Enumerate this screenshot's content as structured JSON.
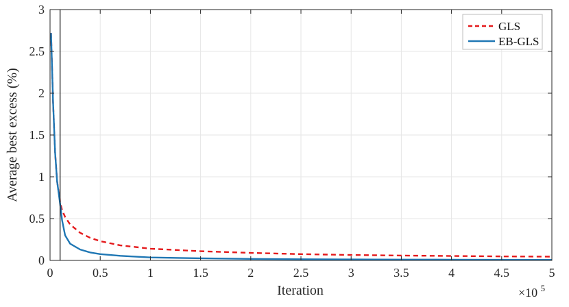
{
  "chart_data": {
    "type": "line",
    "xlabel": "Iteration",
    "ylabel": "Average best excess (%)",
    "x_exponent_label": "×10",
    "x_exponent_power": "5",
    "xlim": [
      0,
      5
    ],
    "ylim": [
      0,
      3
    ],
    "x_ticks": [
      0,
      0.5,
      1,
      1.5,
      2,
      2.5,
      3,
      3.5,
      4,
      4.5,
      5
    ],
    "x_tick_labels": [
      "0",
      "0.5",
      "1",
      "1.5",
      "2",
      "2.5",
      "3",
      "3.5",
      "4",
      "4.5",
      "5"
    ],
    "y_ticks": [
      0,
      0.5,
      1,
      1.5,
      2,
      2.5,
      3
    ],
    "y_tick_labels": [
      "0",
      "0.5",
      "1",
      "1.5",
      "2",
      "2.5",
      "3"
    ],
    "grid": true,
    "legend_position": "top-right",
    "vertical_line_x": 0.1,
    "series": [
      {
        "name": "GLS",
        "color": "#e41a1c",
        "dash": "dashed",
        "x": [
          0.01,
          0.03,
          0.05,
          0.07,
          0.1,
          0.12,
          0.15,
          0.2,
          0.3,
          0.4,
          0.5,
          0.7,
          1.0,
          1.5,
          2.0,
          2.5,
          3.0,
          3.5,
          4.0,
          4.5,
          5.0
        ],
        "y": [
          2.72,
          1.9,
          1.3,
          0.95,
          0.7,
          0.6,
          0.52,
          0.43,
          0.33,
          0.27,
          0.23,
          0.18,
          0.14,
          0.11,
          0.09,
          0.075,
          0.065,
          0.058,
          0.053,
          0.048,
          0.045
        ]
      },
      {
        "name": "EB-GLS",
        "color": "#1f77b4",
        "dash": "solid",
        "x": [
          0.01,
          0.03,
          0.05,
          0.07,
          0.1,
          0.12,
          0.15,
          0.2,
          0.3,
          0.4,
          0.5,
          0.7,
          1.0,
          1.5,
          2.0,
          2.5,
          3.0,
          3.5,
          4.0,
          4.5,
          5.0
        ],
        "y": [
          2.72,
          1.9,
          1.3,
          0.95,
          0.68,
          0.48,
          0.3,
          0.2,
          0.13,
          0.095,
          0.075,
          0.055,
          0.035,
          0.025,
          0.018,
          0.014,
          0.012,
          0.01,
          0.009,
          0.008,
          0.007
        ]
      }
    ]
  }
}
